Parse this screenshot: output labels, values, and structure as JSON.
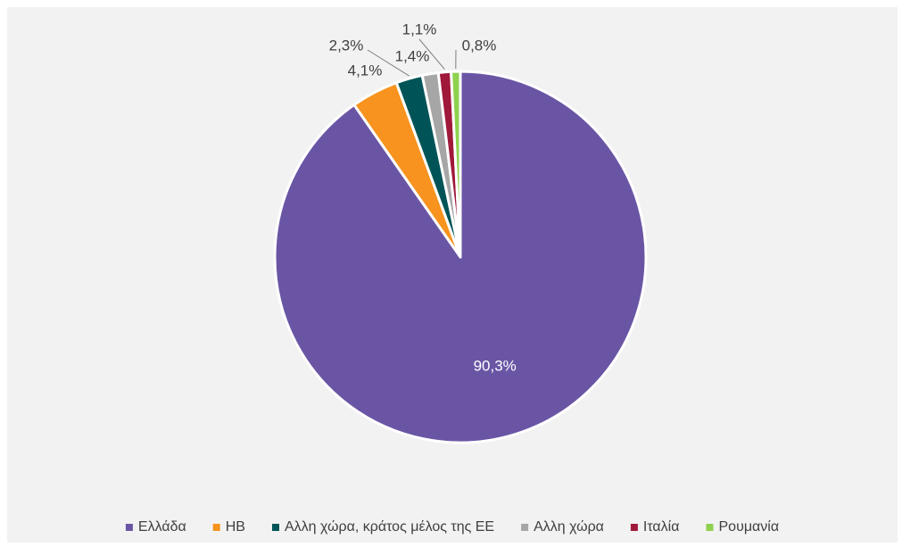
{
  "chart_data": {
    "type": "pie",
    "categories": [
      "Ελλάδα",
      "ΗΒ",
      "Αλλη χώρα, κράτος μέλος της ΕΕ",
      "Αλλη χώρα",
      "Ιταλία",
      "Ρουμανία"
    ],
    "values": [
      90.3,
      4.1,
      2.3,
      1.4,
      1.1,
      0.8
    ],
    "labels": [
      "90,3%",
      "4,1%",
      "2,3%",
      "1,4%",
      "1,1%",
      "0,8%"
    ],
    "colors": [
      "#6a55a5",
      "#f7931e",
      "#005457",
      "#a6a6a6",
      "#a0193a",
      "#8fd14f"
    ],
    "legend": "bottom",
    "title": ""
  }
}
